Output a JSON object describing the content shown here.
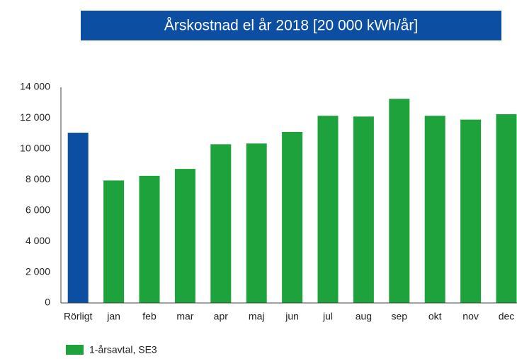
{
  "chart_data": {
    "type": "bar",
    "title": "Årskostnad el år 2018 [20 000 kWh/år]",
    "categories": [
      "Rörligt",
      "jan",
      "feb",
      "mar",
      "apr",
      "maj",
      "jun",
      "jul",
      "aug",
      "sep",
      "okt",
      "nov",
      "dec"
    ],
    "series": [
      {
        "name": "1-årsavtal, SE3",
        "color": "#1ea33c",
        "values": [
          11050,
          7950,
          8250,
          8700,
          10300,
          10350,
          11100,
          12150,
          12100,
          13250,
          12150,
          11900,
          12250
        ]
      }
    ],
    "bar_colors": [
      "#0b4ea2",
      "#1ea33c",
      "#1ea33c",
      "#1ea33c",
      "#1ea33c",
      "#1ea33c",
      "#1ea33c",
      "#1ea33c",
      "#1ea33c",
      "#1ea33c",
      "#1ea33c",
      "#1ea33c",
      "#1ea33c"
    ],
    "ylim": [
      0,
      14000
    ],
    "yticks": [
      0,
      {
        "value": 2000,
        "label": "2 000"
      },
      {
        "value": 4000,
        "label": "4 000"
      },
      {
        "value": 6000,
        "label": "6 000"
      },
      {
        "value": 8000,
        "label": "8 000"
      },
      {
        "value": 10000,
        "label": "10 000"
      },
      {
        "value": 12000,
        "label": "12 000"
      },
      {
        "value": 14000,
        "label": "14 000"
      }
    ],
    "grid": false,
    "legend": "bottom-left"
  }
}
